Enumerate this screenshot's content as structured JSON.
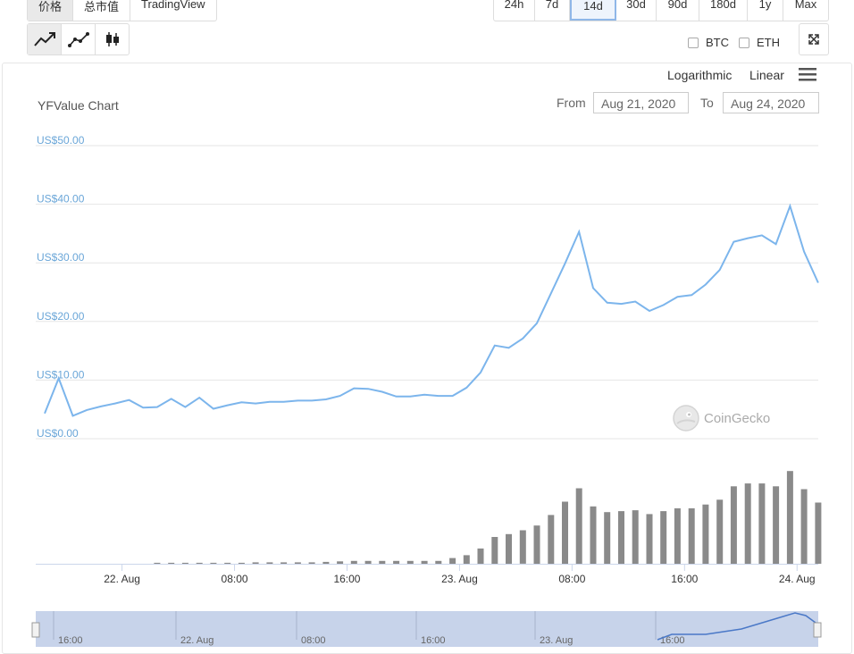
{
  "tabs": [
    {
      "label": "价格",
      "active": true
    },
    {
      "label": "总市值",
      "active": false
    },
    {
      "label": "TradingView",
      "active": false
    }
  ],
  "ranges": [
    {
      "label": "24h",
      "active": false
    },
    {
      "label": "7d",
      "active": false
    },
    {
      "label": "14d",
      "active": true
    },
    {
      "label": "30d",
      "active": false
    },
    {
      "label": "90d",
      "active": false
    },
    {
      "label": "180d",
      "active": false
    },
    {
      "label": "1y",
      "active": false
    },
    {
      "label": "Max",
      "active": false
    }
  ],
  "chart_type_icons": [
    "line-chart-icon",
    "point-line-chart-icon",
    "candlestick-icon"
  ],
  "compare": {
    "btc": "BTC",
    "eth": "ETH"
  },
  "scale": {
    "logarithmic": "Logarithmic",
    "linear": "Linear"
  },
  "chart_title": "YFValue Chart",
  "range_picker": {
    "from_label": "From",
    "from": "Aug 21, 2020",
    "to_label": "To",
    "to": "Aug 24, 2020"
  },
  "watermark": "CoinGecko",
  "colors": {
    "line": "#7cb5ec",
    "volume": "#8a8a8a",
    "axis_label": "#6aa6d8",
    "navigator": "#c7d3ea"
  },
  "chart_data": {
    "type": "line",
    "y_ticks": [
      "US$50.00",
      "US$40.00",
      "US$30.00",
      "US$20.00",
      "US$10.00",
      "US$0.00"
    ],
    "ylim": [
      0,
      50
    ],
    "x_ticks": [
      "22. Aug",
      "08:00",
      "16:00",
      "23. Aug",
      "08:00",
      "16:00",
      "24. Aug"
    ],
    "x_tick_hours": [
      6,
      14,
      22,
      30,
      38,
      46,
      54
    ],
    "x_range_hours": [
      0.5,
      55
    ],
    "series": [
      {
        "values": [
          [
            0.5,
            4.3
          ],
          [
            1.5,
            10.3
          ],
          [
            2.5,
            3.9
          ],
          [
            3.5,
            4.9
          ],
          [
            4.5,
            5.5
          ],
          [
            5.5,
            6.0
          ],
          [
            6.5,
            6.6
          ],
          [
            7.5,
            5.3
          ],
          [
            8.5,
            5.4
          ],
          [
            9.5,
            6.8
          ],
          [
            10.5,
            5.4
          ],
          [
            11.5,
            7.0
          ],
          [
            12.5,
            5.1
          ],
          [
            13.5,
            5.7
          ],
          [
            14.5,
            6.2
          ],
          [
            15.5,
            6.0
          ],
          [
            16.5,
            6.3
          ],
          [
            17.5,
            6.3
          ],
          [
            18.5,
            6.5
          ],
          [
            19.5,
            6.5
          ],
          [
            20.5,
            6.7
          ],
          [
            21.5,
            7.3
          ],
          [
            22.5,
            8.6
          ],
          [
            23.5,
            8.5
          ],
          [
            24.5,
            8.0
          ],
          [
            25.5,
            7.2
          ],
          [
            26.5,
            7.2
          ],
          [
            27.5,
            7.5
          ],
          [
            28.5,
            7.3
          ],
          [
            29.5,
            7.3
          ],
          [
            30.5,
            8.7
          ],
          [
            31.5,
            11.3
          ],
          [
            32.5,
            15.9
          ],
          [
            33.5,
            15.5
          ],
          [
            34.5,
            17.1
          ],
          [
            35.5,
            19.7
          ],
          [
            36.5,
            24.8
          ],
          [
            37.5,
            29.9
          ],
          [
            38.5,
            35.3
          ],
          [
            39.5,
            25.7
          ],
          [
            40.5,
            23.2
          ],
          [
            41.5,
            23.0
          ],
          [
            42.5,
            23.4
          ],
          [
            43.5,
            21.8
          ],
          [
            44.5,
            22.8
          ],
          [
            45.5,
            24.2
          ],
          [
            46.5,
            24.5
          ],
          [
            47.5,
            26.3
          ],
          [
            48.5,
            28.8
          ],
          [
            49.5,
            33.6
          ],
          [
            50.5,
            34.2
          ],
          [
            51.5,
            34.7
          ],
          [
            52.5,
            33.2
          ],
          [
            53.5,
            39.7
          ],
          [
            54.5,
            31.9
          ],
          [
            55.5,
            26.6
          ]
        ]
      }
    ],
    "volume": [
      0,
      0,
      0,
      0,
      0,
      0,
      0,
      0,
      0.01,
      0.01,
      0.01,
      0.01,
      0.01,
      0.01,
      0.01,
      0.015,
      0.015,
      0.015,
      0.015,
      0.015,
      0.02,
      0.025,
      0.03,
      0.03,
      0.03,
      0.03,
      0.03,
      0.03,
      0.03,
      0.06,
      0.09,
      0.16,
      0.28,
      0.31,
      0.35,
      0.4,
      0.51,
      0.65,
      0.79,
      0.6,
      0.54,
      0.55,
      0.56,
      0.52,
      0.55,
      0.58,
      0.58,
      0.62,
      0.67,
      0.81,
      0.84,
      0.84,
      0.81,
      0.97,
      0.78,
      0.64
    ]
  },
  "navigator": {
    "labels": [
      "16:00",
      "22. Aug",
      "08:00",
      "16:00",
      "23. Aug",
      "16:00"
    ]
  }
}
